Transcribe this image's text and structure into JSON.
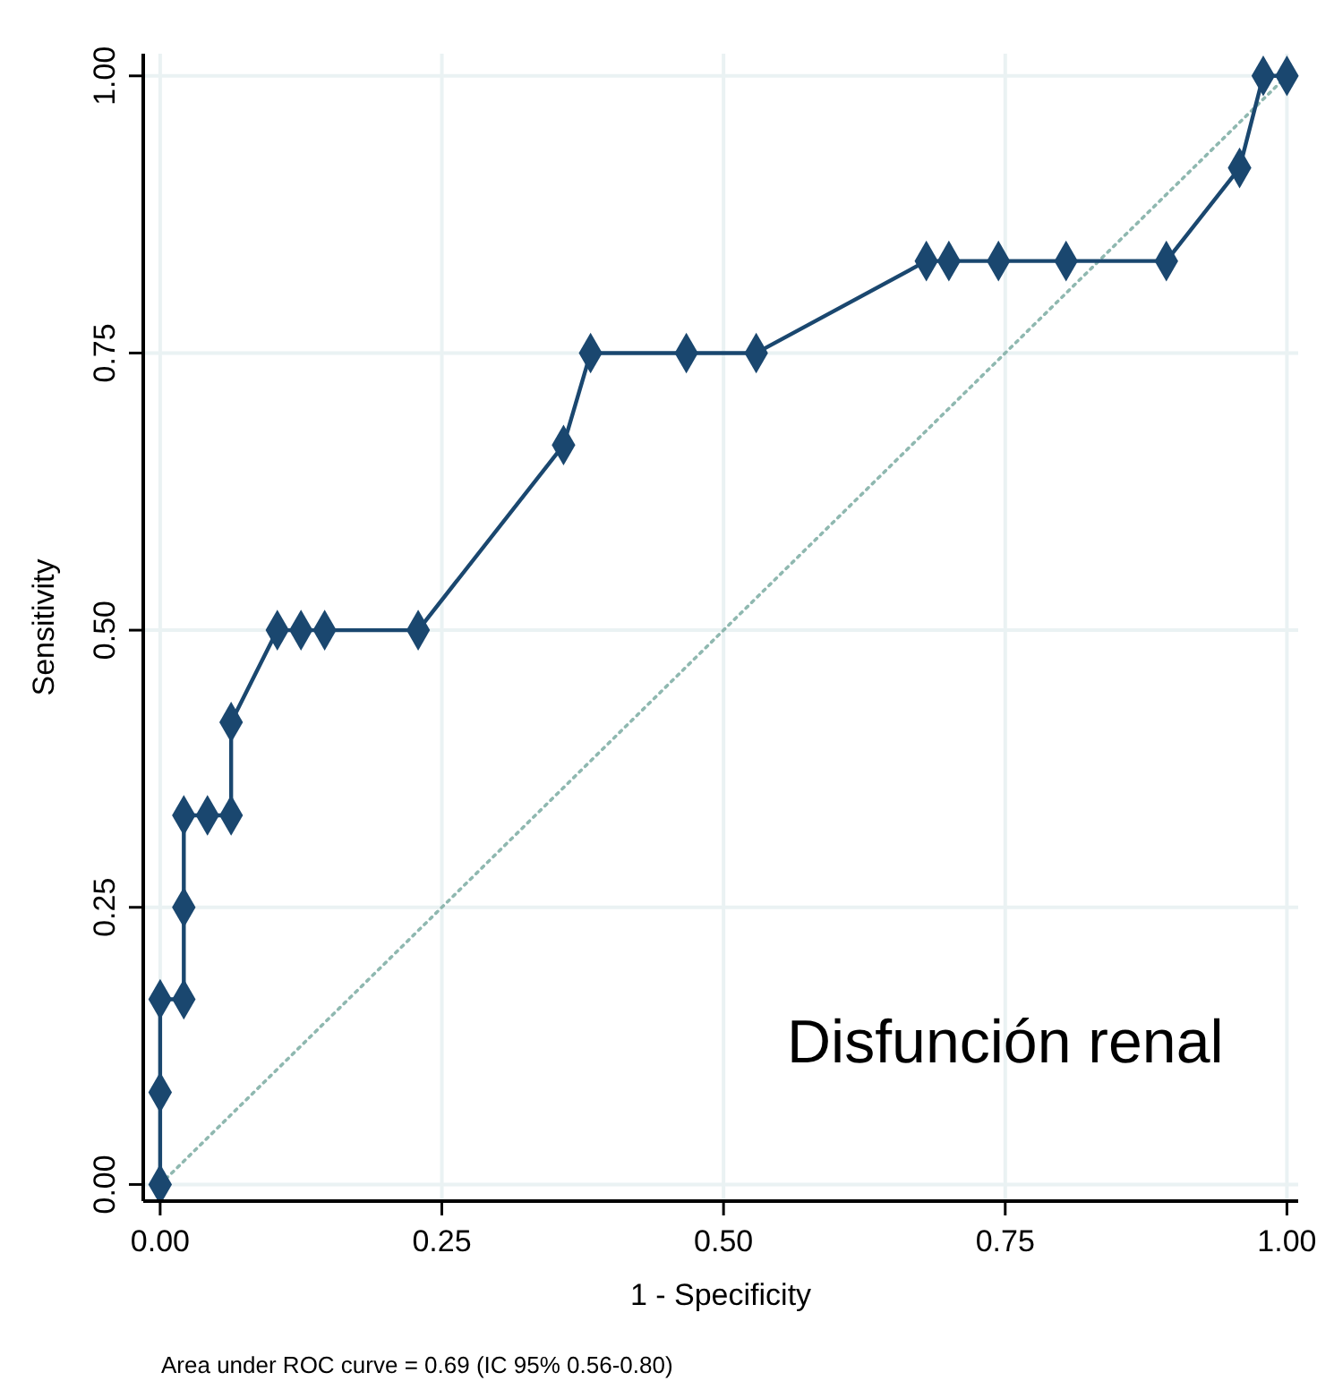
{
  "chart_data": {
    "type": "line",
    "xlabel": "1 - Specificity",
    "ylabel": "Sensitivity",
    "annotations": [
      "Disfunción renal",
      "Area under ROC curve = 0.69 (IC 95% 0.56-0.80)"
    ],
    "xlim": [
      -0.015,
      1.01
    ],
    "ylim": [
      -0.015,
      1.02
    ],
    "xticks": [
      {
        "value": 0,
        "label": "0.00"
      },
      {
        "value": 0.25,
        "label": "0.25"
      },
      {
        "value": 0.5,
        "label": "0.50"
      },
      {
        "value": 0.75,
        "label": "0.75"
      },
      {
        "value": 1,
        "label": "1.00"
      }
    ],
    "yticks": [
      {
        "value": 0,
        "label": "0.00"
      },
      {
        "value": 0.25,
        "label": "0.25"
      },
      {
        "value": 0.5,
        "label": "0.50"
      },
      {
        "value": 0.75,
        "label": "0.75"
      },
      {
        "value": 1,
        "label": "1.00"
      }
    ],
    "grid": true,
    "series": [
      {
        "color": "#8fb8b0",
        "line_style": "dotted",
        "marker": "none",
        "x": [
          0,
          1
        ],
        "values": [
          0,
          1
        ]
      },
      {
        "color": "#1a476f",
        "line_style": "solid",
        "marker": "diamond",
        "x": [
          0,
          0,
          0,
          0.021,
          0.021,
          0.021,
          0.042,
          0.063,
          0.063,
          0.104,
          0.125,
          0.146,
          0.229,
          0.358,
          0.382,
          0.467,
          0.529,
          0.68,
          0.7,
          0.744,
          0.804,
          0.893,
          0.958,
          0.979,
          1
        ],
        "values": [
          0,
          0.083,
          0.167,
          0.167,
          0.25,
          0.333,
          0.333,
          0.333,
          0.417,
          0.5,
          0.5,
          0.5,
          0.5,
          0.667,
          0.75,
          0.75,
          0.75,
          0.833,
          0.833,
          0.833,
          0.833,
          0.833,
          0.917,
          1,
          1
        ]
      }
    ]
  }
}
